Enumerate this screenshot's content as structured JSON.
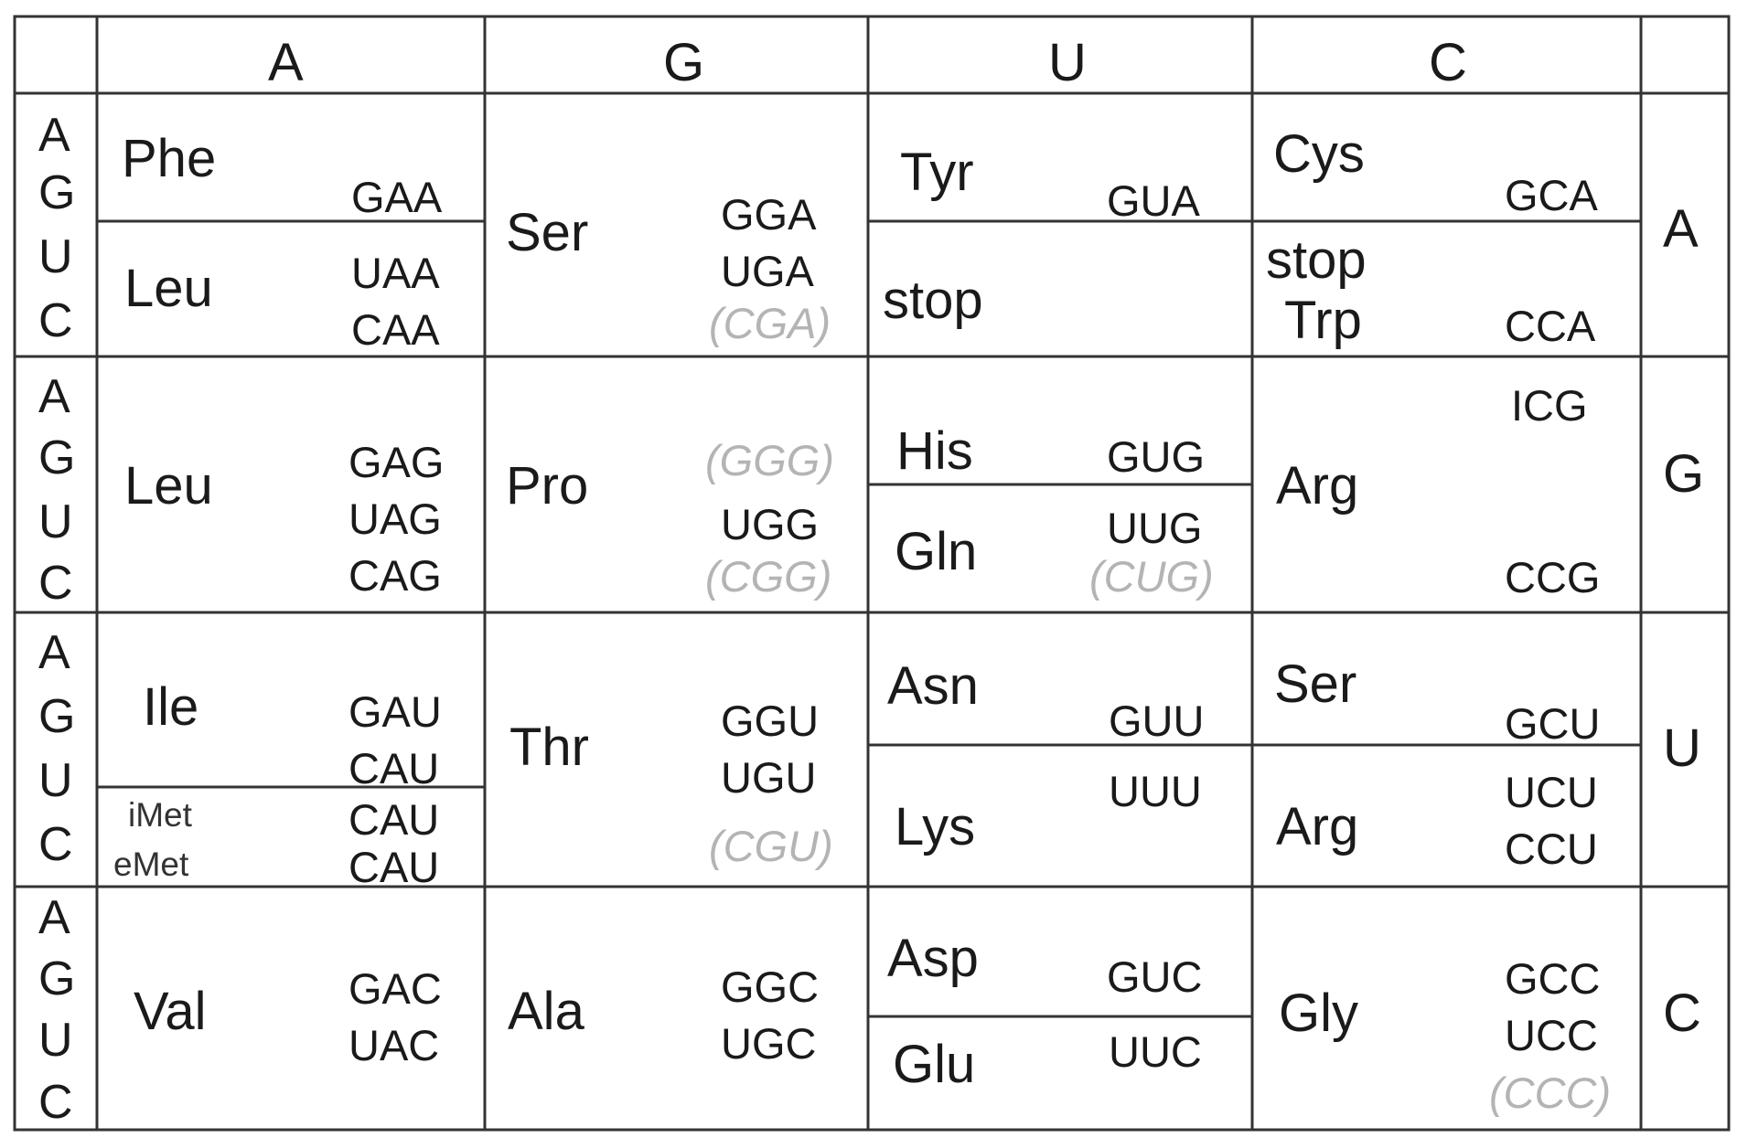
{
  "colors": {
    "grid_line": "#333333",
    "text": "#1a1a1a",
    "parenthetical": "#b4b4b4"
  },
  "columns": [
    "A",
    "G",
    "U",
    "C"
  ],
  "rows": [
    "A",
    "G",
    "U",
    "C"
  ],
  "row_letters": [
    "A",
    "G",
    "U",
    "C"
  ],
  "cells": {
    "AA": {
      "top_aa": "Phe",
      "top_codons": [
        "GAA"
      ],
      "bottom_aa": "Leu",
      "bottom_codons": [
        "UAA",
        "CAA"
      ]
    },
    "AG": {
      "aa": "Ser",
      "codons": [
        "GGA",
        "UGA",
        "(CGA)"
      ]
    },
    "AU": {
      "top_aa": "Tyr",
      "top_codons": [
        "GUA"
      ],
      "bottom_aa": "stop"
    },
    "AC": {
      "top_aa": "Cys",
      "top_codons": [
        "GCA"
      ],
      "bottom_aa_1": "stop",
      "bottom_aa_2": "Trp",
      "bottom_codons": [
        "CCA"
      ]
    },
    "GA": {
      "aa": "Leu",
      "codons": [
        "GAG",
        "UAG",
        "CAG"
      ]
    },
    "GG": {
      "aa": "Pro",
      "codons": [
        "(GGG)",
        "UGG",
        "(CGG)"
      ]
    },
    "GU": {
      "top_aa": "His",
      "top_codons": [
        "GUG"
      ],
      "bottom_aa": "Gln",
      "bottom_codons": [
        "UUG",
        "(CUG)"
      ]
    },
    "GC": {
      "aa": "Arg",
      "codons": [
        "ICG",
        "CCG"
      ]
    },
    "UA": {
      "top_aa": "Ile",
      "top_codons": [
        "GAU",
        "CAU"
      ],
      "bottom_aa_1": "iMet",
      "bottom_aa_2": "eMet",
      "bottom_codons": [
        "CAU",
        "CAU"
      ]
    },
    "UG": {
      "aa": "Thr",
      "codons": [
        "GGU",
        "UGU",
        "(CGU)"
      ]
    },
    "UU": {
      "top_aa": "Asn",
      "top_codons": [
        "GUU"
      ],
      "bottom_aa": "Lys",
      "bottom_codons": [
        "UUU"
      ]
    },
    "UC": {
      "top_aa": "Ser",
      "top_codons": [
        "GCU"
      ],
      "bottom_aa": "Arg",
      "bottom_codons": [
        "UCU",
        "CCU"
      ]
    },
    "CA": {
      "aa": "Val",
      "codons": [
        "GAC",
        "UAC"
      ]
    },
    "CG": {
      "aa": "Ala",
      "codons": [
        "GGC",
        "UGC"
      ]
    },
    "CU": {
      "top_aa": "Asp",
      "top_codons": [
        "GUC"
      ],
      "bottom_aa": "Glu",
      "bottom_codons": [
        "UUC"
      ]
    },
    "CC": {
      "aa": "Gly",
      "codons": [
        "GCC",
        "UCC",
        "(CCC)"
      ]
    }
  }
}
